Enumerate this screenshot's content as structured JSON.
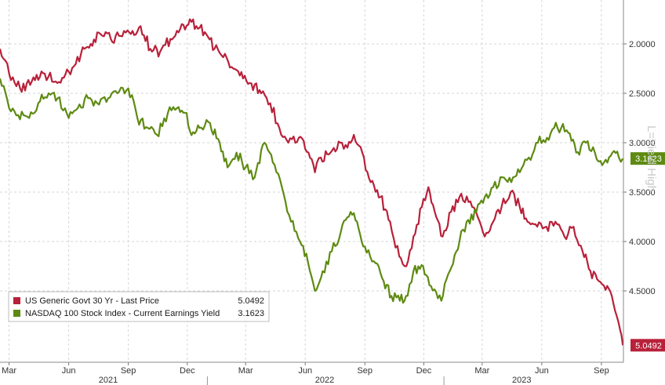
{
  "chart_data": {
    "type": "line",
    "title": "",
    "xlabel": "",
    "ylabel": "",
    "y_scale": "linear",
    "y_axis_inverted": true,
    "y_axis_position": "right",
    "ylim": [
      1.7,
      5.2
    ],
    "y_ticks": [
      2.0,
      2.5,
      3.0,
      3.5,
      4.0,
      4.5
    ],
    "y_tick_labels": [
      "2.0000",
      "2.5000",
      "3.0000",
      "3.5000",
      "4.0000",
      "4.5000"
    ],
    "xlim": [
      "2021-02-15",
      "2023-10-05"
    ],
    "month_ticks": [
      {
        "label": "Mar",
        "date": "2021-03-01"
      },
      {
        "label": "Jun",
        "date": "2021-06-01"
      },
      {
        "label": "Sep",
        "date": "2021-09-01"
      },
      {
        "label": "Dec",
        "date": "2021-12-01"
      },
      {
        "label": "Mar",
        "date": "2022-03-01"
      },
      {
        "label": "Jun",
        "date": "2022-06-01"
      },
      {
        "label": "Sep",
        "date": "2022-09-01"
      },
      {
        "label": "Dec",
        "date": "2022-12-01"
      },
      {
        "label": "Mar",
        "date": "2023-03-01"
      },
      {
        "label": "Jun",
        "date": "2023-06-01"
      },
      {
        "label": "Sep",
        "date": "2023-09-01"
      }
    ],
    "year_labels": [
      {
        "label": "2021",
        "date": "2021-08-01"
      },
      {
        "label": "2022",
        "date": "2022-07-01"
      },
      {
        "label": "2023",
        "date": "2023-05-01"
      }
    ],
    "year_dividers": [
      "2022-01-01",
      "2023-01-01"
    ],
    "grid": true,
    "legend_position": "bottom-left",
    "side_label": "L=Yield High",
    "series": [
      {
        "name": "US Generic Govt 30 Yr - Last Price",
        "legend_value": "5.0492",
        "last_value_tag": "5.0492",
        "color": "#b8213a",
        "points": [
          [
            "2021-02-15",
            2.05
          ],
          [
            "2021-03-01",
            2.3
          ],
          [
            "2021-03-18",
            2.45
          ],
          [
            "2021-04-05",
            2.38
          ],
          [
            "2021-04-25",
            2.3
          ],
          [
            "2021-05-12",
            2.38
          ],
          [
            "2021-06-01",
            2.28
          ],
          [
            "2021-06-20",
            2.1
          ],
          [
            "2021-07-05",
            2.0
          ],
          [
            "2021-07-20",
            1.9
          ],
          [
            "2021-08-05",
            1.95
          ],
          [
            "2021-08-20",
            1.92
          ],
          [
            "2021-09-05",
            1.9
          ],
          [
            "2021-09-20",
            1.82
          ],
          [
            "2021-10-05",
            2.05
          ],
          [
            "2021-10-20",
            2.08
          ],
          [
            "2021-11-05",
            1.95
          ],
          [
            "2021-11-20",
            1.85
          ],
          [
            "2021-12-05",
            1.75
          ],
          [
            "2021-12-15",
            1.82
          ],
          [
            "2021-12-28",
            1.88
          ],
          [
            "2022-01-12",
            2.05
          ],
          [
            "2022-01-28",
            2.1
          ],
          [
            "2022-02-10",
            2.25
          ],
          [
            "2022-02-25",
            2.35
          ],
          [
            "2022-03-10",
            2.4
          ],
          [
            "2022-03-25",
            2.5
          ],
          [
            "2022-04-08",
            2.6
          ],
          [
            "2022-04-22",
            2.85
          ],
          [
            "2022-05-06",
            3.0
          ],
          [
            "2022-05-22",
            2.95
          ],
          [
            "2022-06-06",
            3.1
          ],
          [
            "2022-06-16",
            3.3
          ],
          [
            "2022-06-25",
            3.15
          ],
          [
            "2022-07-10",
            3.1
          ],
          [
            "2022-07-25",
            3.0
          ],
          [
            "2022-08-05",
            3.05
          ],
          [
            "2022-08-15",
            2.92
          ],
          [
            "2022-08-28",
            3.1
          ],
          [
            "2022-09-10",
            3.4
          ],
          [
            "2022-09-25",
            3.55
          ],
          [
            "2022-10-10",
            3.8
          ],
          [
            "2022-10-24",
            4.15
          ],
          [
            "2022-11-04",
            4.25
          ],
          [
            "2022-11-15",
            3.95
          ],
          [
            "2022-11-28",
            3.65
          ],
          [
            "2022-12-08",
            3.45
          ],
          [
            "2022-12-20",
            3.75
          ],
          [
            "2022-12-30",
            3.95
          ],
          [
            "2023-01-12",
            3.7
          ],
          [
            "2023-01-25",
            3.55
          ],
          [
            "2023-02-08",
            3.6
          ],
          [
            "2023-02-22",
            3.75
          ],
          [
            "2023-03-05",
            3.95
          ],
          [
            "2023-03-18",
            3.8
          ],
          [
            "2023-03-31",
            3.65
          ],
          [
            "2023-04-14",
            3.5
          ],
          [
            "2023-04-28",
            3.65
          ],
          [
            "2023-05-10",
            3.8
          ],
          [
            "2023-05-25",
            3.85
          ],
          [
            "2023-06-08",
            3.85
          ],
          [
            "2023-06-22",
            3.8
          ],
          [
            "2023-07-06",
            3.95
          ],
          [
            "2023-07-20",
            3.85
          ],
          [
            "2023-08-03",
            4.1
          ],
          [
            "2023-08-15",
            4.3
          ],
          [
            "2023-08-28",
            4.4
          ],
          [
            "2023-09-10",
            4.45
          ],
          [
            "2023-09-22",
            4.7
          ],
          [
            "2023-09-30",
            4.9
          ],
          [
            "2023-10-04",
            5.05
          ]
        ]
      },
      {
        "name": "NASDAQ 100 Stock Index - Current Earnings Yield",
        "legend_value": "3.1623",
        "last_value_tag": "3.1623",
        "color": "#5e8a12",
        "points": [
          [
            "2021-02-15",
            2.35
          ],
          [
            "2021-03-01",
            2.65
          ],
          [
            "2021-03-15",
            2.72
          ],
          [
            "2021-04-01",
            2.75
          ],
          [
            "2021-04-15",
            2.6
          ],
          [
            "2021-05-01",
            2.5
          ],
          [
            "2021-05-15",
            2.55
          ],
          [
            "2021-06-01",
            2.75
          ],
          [
            "2021-06-15",
            2.65
          ],
          [
            "2021-07-01",
            2.55
          ],
          [
            "2021-07-15",
            2.6
          ],
          [
            "2021-08-01",
            2.55
          ],
          [
            "2021-08-15",
            2.5
          ],
          [
            "2021-09-01",
            2.45
          ],
          [
            "2021-09-15",
            2.75
          ],
          [
            "2021-10-01",
            2.85
          ],
          [
            "2021-10-15",
            2.92
          ],
          [
            "2021-11-01",
            2.7
          ],
          [
            "2021-11-15",
            2.65
          ],
          [
            "2021-11-30",
            2.7
          ],
          [
            "2021-12-05",
            2.88
          ],
          [
            "2021-12-20",
            2.85
          ],
          [
            "2022-01-05",
            2.8
          ],
          [
            "2022-01-20",
            3.0
          ],
          [
            "2022-02-01",
            3.25
          ],
          [
            "2022-02-15",
            3.1
          ],
          [
            "2022-03-01",
            3.25
          ],
          [
            "2022-03-15",
            3.35
          ],
          [
            "2022-03-30",
            3.0
          ],
          [
            "2022-04-12",
            3.2
          ],
          [
            "2022-04-26",
            3.45
          ],
          [
            "2022-05-10",
            3.8
          ],
          [
            "2022-05-24",
            4.0
          ],
          [
            "2022-06-05",
            4.2
          ],
          [
            "2022-06-16",
            4.5
          ],
          [
            "2022-06-28",
            4.3
          ],
          [
            "2022-07-12",
            4.1
          ],
          [
            "2022-07-26",
            3.9
          ],
          [
            "2022-08-10",
            3.7
          ],
          [
            "2022-08-20",
            3.8
          ],
          [
            "2022-09-01",
            4.05
          ],
          [
            "2022-09-15",
            4.2
          ],
          [
            "2022-09-30",
            4.4
          ],
          [
            "2022-10-12",
            4.55
          ],
          [
            "2022-10-25",
            4.6
          ],
          [
            "2022-11-06",
            4.55
          ],
          [
            "2022-11-15",
            4.3
          ],
          [
            "2022-11-30",
            4.25
          ],
          [
            "2022-12-12",
            4.45
          ],
          [
            "2022-12-28",
            4.6
          ],
          [
            "2023-01-10",
            4.3
          ],
          [
            "2023-01-25",
            4.0
          ],
          [
            "2023-02-05",
            3.8
          ],
          [
            "2023-02-20",
            3.7
          ],
          [
            "2023-03-05",
            3.55
          ],
          [
            "2023-03-18",
            3.45
          ],
          [
            "2023-04-01",
            3.35
          ],
          [
            "2023-04-15",
            3.4
          ],
          [
            "2023-04-28",
            3.3
          ],
          [
            "2023-05-12",
            3.15
          ],
          [
            "2023-05-26",
            3.0
          ],
          [
            "2023-06-09",
            2.95
          ],
          [
            "2023-06-20",
            2.85
          ],
          [
            "2023-07-01",
            2.85
          ],
          [
            "2023-07-12",
            2.9
          ],
          [
            "2023-07-24",
            3.1
          ],
          [
            "2023-08-08",
            3.0
          ],
          [
            "2023-08-22",
            3.1
          ],
          [
            "2023-09-05",
            3.2
          ],
          [
            "2023-09-18",
            3.1
          ],
          [
            "2023-09-28",
            3.15
          ],
          [
            "2023-10-04",
            3.16
          ]
        ]
      }
    ]
  }
}
